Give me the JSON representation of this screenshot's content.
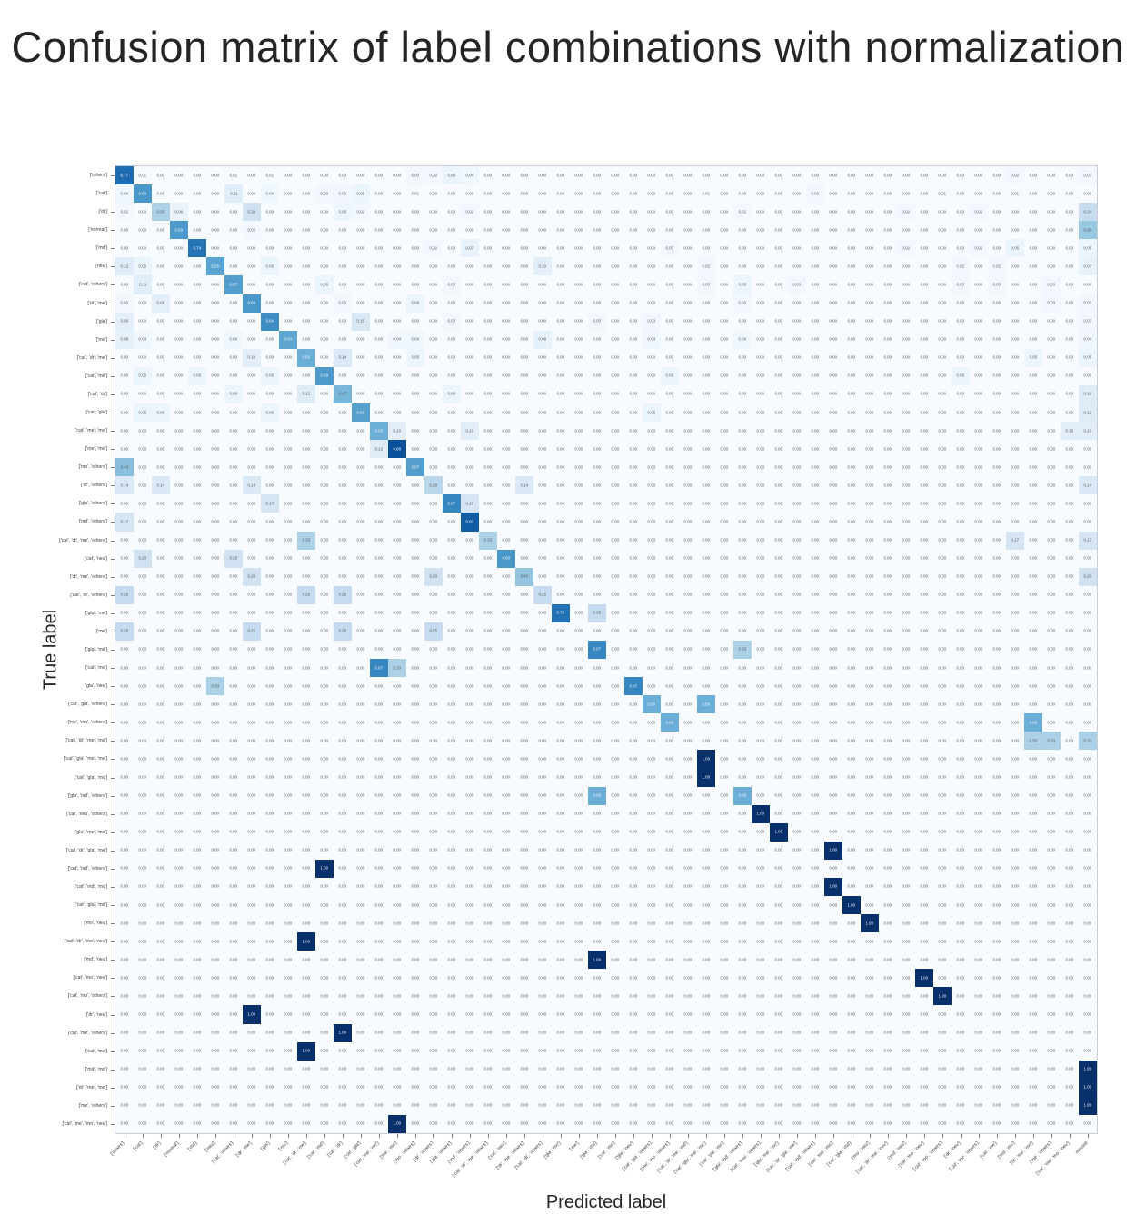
{
  "title": "Confusion matrix of label combinations with normalization",
  "chart_data": {
    "type": "heatmap",
    "colormap": "Blues",
    "title": "Confusion matrix of label combinations with normalization",
    "xlabel": "Predicted label",
    "ylabel": "True label",
    "value_range": [
      0,
      1
    ],
    "cell_format": "0.00",
    "default_value": 0,
    "grid": false,
    "row_labels": [
      "['others']",
      "['cat']",
      "['dr']",
      "['normal']",
      "['md']",
      "['neu']",
      "['cat', 'others']",
      "['dr', 'me']",
      "['gla']",
      "['mo']",
      "['cat', 'dr', 'me']",
      "['cat', 'md']",
      "['cat', 'dr']",
      "['cat', 'gla']",
      "['cat', 'me', 'mo']",
      "['me', 'mo']",
      "['mo', 'others']",
      "['dr', 'others']",
      "['gla', 'others']",
      "['md', 'others']",
      "['cat', 'dr', 'me', 'others']",
      "['cat', 'neu']",
      "['dr', 'me', 'others']",
      "['cat', 'dr', 'others']",
      "['gla', 'mo']",
      "['me']",
      "['gla', 'md']",
      "['cat', 'mo']",
      "['gla', 'neu']",
      "['cat', 'gla', 'others']",
      "['me', 'mo', 'others']",
      "['cat', 'dr', 'me', 'md']",
      "['cat', 'gla', 'me', 'mo']",
      "['cat', 'gla', 'mo']",
      "['gla', 'md', 'others']",
      "['cat', 'neu', 'others']",
      "['gla', 'me', 'mo']",
      "['cat', 'dr', 'gla', 'me']",
      "['cat', 'md', 'others']",
      "['cat', 'md', 'mo']",
      "['cat', 'gla', 'md']",
      "['mo', 'neu']",
      "['cat', 'dr', 'me', 'neu']",
      "['md', 'neu']",
      "['cat', 'mo', 'neu']",
      "['cat', 'mo', 'others']",
      "['dr', 'neu']",
      "['cat', 'me', 'others']",
      "['cat', 'me']",
      "['md', 'mo']",
      "['dr', 'me', 'mo']",
      "['me', 'others']",
      "['cat', 'me', 'mo', 'neu']"
    ],
    "extra_col_label": "missed",
    "entries": [
      [
        1,
        1,
        0.77
      ],
      [
        1,
        2,
        0.01
      ],
      [
        1,
        7,
        0.01
      ],
      [
        1,
        9,
        0.01
      ],
      [
        1,
        17,
        0.03
      ],
      [
        1,
        18,
        0.02
      ],
      [
        1,
        19,
        0.06
      ],
      [
        1,
        20,
        0.04
      ],
      [
        1,
        50,
        0.02
      ],
      [
        1,
        54,
        0.03
      ],
      [
        2,
        1,
        0.04
      ],
      [
        2,
        2,
        0.6
      ],
      [
        2,
        7,
        0.11
      ],
      [
        2,
        9,
        0.04
      ],
      [
        2,
        12,
        0.03
      ],
      [
        2,
        13,
        0.03
      ],
      [
        2,
        14,
        0.05
      ],
      [
        2,
        17,
        0.01
      ],
      [
        2,
        33,
        0.01
      ],
      [
        2,
        39,
        0.03
      ],
      [
        2,
        46,
        0.01
      ],
      [
        2,
        50,
        0.01
      ],
      [
        3,
        1,
        0.02
      ],
      [
        3,
        3,
        0.33
      ],
      [
        3,
        4,
        0.06
      ],
      [
        3,
        8,
        0.2
      ],
      [
        3,
        13,
        0.05
      ],
      [
        3,
        14,
        0.02
      ],
      [
        3,
        20,
        0.02
      ],
      [
        3,
        35,
        0.02
      ],
      [
        3,
        44,
        0.02
      ],
      [
        3,
        48,
        0.02
      ],
      [
        3,
        54,
        0.24
      ],
      [
        4,
        4,
        0.59
      ],
      [
        4,
        8,
        0.02
      ],
      [
        4,
        54,
        0.39
      ],
      [
        5,
        5,
        0.74
      ],
      [
        5,
        18,
        0.02
      ],
      [
        5,
        20,
        0.07
      ],
      [
        5,
        31,
        0.03
      ],
      [
        5,
        44,
        0.02
      ],
      [
        5,
        48,
        0.02
      ],
      [
        5,
        50,
        0.05
      ],
      [
        5,
        54,
        0.05
      ],
      [
        6,
        1,
        0.12
      ],
      [
        6,
        2,
        0.05
      ],
      [
        6,
        6,
        0.55
      ],
      [
        6,
        9,
        0.05
      ],
      [
        6,
        24,
        0.1
      ],
      [
        6,
        33,
        0.02
      ],
      [
        6,
        47,
        0.02
      ],
      [
        6,
        49,
        0.02
      ],
      [
        6,
        54,
        0.07
      ],
      [
        7,
        2,
        0.11
      ],
      [
        7,
        7,
        0.57
      ],
      [
        7,
        12,
        0.05
      ],
      [
        7,
        19,
        0.03
      ],
      [
        7,
        33,
        0.03
      ],
      [
        7,
        35,
        0.05
      ],
      [
        7,
        38,
        0.03
      ],
      [
        7,
        47,
        0.03
      ],
      [
        7,
        49,
        0.03
      ],
      [
        7,
        52,
        0.03
      ],
      [
        8,
        1,
        0.03
      ],
      [
        8,
        3,
        0.09
      ],
      [
        8,
        8,
        0.6
      ],
      [
        8,
        13,
        0.03
      ],
      [
        8,
        17,
        0.06
      ],
      [
        8,
        35,
        0.03
      ],
      [
        8,
        52,
        0.03
      ],
      [
        8,
        54,
        0.03
      ],
      [
        9,
        1,
        0.09
      ],
      [
        9,
        9,
        0.64
      ],
      [
        9,
        14,
        0.15
      ],
      [
        9,
        19,
        0.03
      ],
      [
        9,
        27,
        0.03
      ],
      [
        9,
        30,
        0.03
      ],
      [
        9,
        54,
        0.03
      ],
      [
        10,
        1,
        0.08
      ],
      [
        10,
        2,
        0.04
      ],
      [
        10,
        7,
        0.04
      ],
      [
        10,
        10,
        0.54
      ],
      [
        10,
        16,
        0.04
      ],
      [
        10,
        17,
        0.04
      ],
      [
        10,
        24,
        0.08
      ],
      [
        10,
        30,
        0.04
      ],
      [
        10,
        35,
        0.04
      ],
      [
        10,
        54,
        0.04
      ],
      [
        11,
        8,
        0.1
      ],
      [
        11,
        11,
        0.5
      ],
      [
        11,
        13,
        0.14
      ],
      [
        11,
        17,
        0.05
      ],
      [
        11,
        51,
        0.05
      ],
      [
        11,
        54,
        0.05
      ],
      [
        12,
        2,
        0.05
      ],
      [
        12,
        5,
        0.05
      ],
      [
        12,
        9,
        0.05
      ],
      [
        12,
        12,
        0.59
      ],
      [
        12,
        31,
        0.05
      ],
      [
        12,
        47,
        0.05
      ],
      [
        13,
        7,
        0.06
      ],
      [
        13,
        11,
        0.12
      ],
      [
        13,
        13,
        0.47
      ],
      [
        13,
        19,
        0.06
      ],
      [
        13,
        54,
        0.12
      ],
      [
        14,
        2,
        0.06
      ],
      [
        14,
        3,
        0.06
      ],
      [
        14,
        9,
        0.06
      ],
      [
        14,
        14,
        0.56
      ],
      [
        14,
        30,
        0.06
      ],
      [
        14,
        54,
        0.12
      ],
      [
        15,
        15,
        0.5
      ],
      [
        15,
        16,
        0.1
      ],
      [
        15,
        20,
        0.1
      ],
      [
        15,
        53,
        0.1
      ],
      [
        15,
        54,
        0.1
      ],
      [
        16,
        15,
        0.12
      ],
      [
        16,
        16,
        0.88
      ],
      [
        17,
        1,
        0.43
      ],
      [
        17,
        17,
        0.57
      ],
      [
        18,
        1,
        0.14
      ],
      [
        18,
        3,
        0.14
      ],
      [
        18,
        8,
        0.14
      ],
      [
        18,
        18,
        0.29
      ],
      [
        18,
        23,
        0.14
      ],
      [
        18,
        54,
        0.14
      ],
      [
        19,
        9,
        0.17
      ],
      [
        19,
        19,
        0.67
      ],
      [
        19,
        20,
        0.17
      ],
      [
        20,
        1,
        0.17
      ],
      [
        20,
        20,
        0.83
      ],
      [
        21,
        11,
        0.33
      ],
      [
        21,
        21,
        0.33
      ],
      [
        21,
        50,
        0.17
      ],
      [
        21,
        54,
        0.17
      ],
      [
        22,
        2,
        0.2
      ],
      [
        22,
        7,
        0.2
      ],
      [
        22,
        22,
        0.6
      ],
      [
        23,
        8,
        0.2
      ],
      [
        23,
        18,
        0.2
      ],
      [
        23,
        23,
        0.4
      ],
      [
        23,
        54,
        0.2
      ],
      [
        24,
        1,
        0.25
      ],
      [
        24,
        11,
        0.25
      ],
      [
        24,
        13,
        0.25
      ],
      [
        24,
        24,
        0.25
      ],
      [
        25,
        25,
        0.75
      ],
      [
        25,
        27,
        0.25
      ],
      [
        26,
        1,
        0.25
      ],
      [
        26,
        8,
        0.25
      ],
      [
        26,
        13,
        0.25
      ],
      [
        26,
        18,
        0.25
      ],
      [
        27,
        27,
        0.67
      ],
      [
        27,
        35,
        0.33
      ],
      [
        28,
        15,
        0.67
      ],
      [
        28,
        16,
        0.33
      ],
      [
        29,
        6,
        0.33
      ],
      [
        29,
        29,
        0.67
      ],
      [
        30,
        30,
        0.5
      ],
      [
        30,
        33,
        0.5
      ],
      [
        31,
        31,
        0.5
      ],
      [
        31,
        51,
        0.5
      ],
      [
        32,
        51,
        0.33
      ],
      [
        32,
        52,
        0.33
      ],
      [
        32,
        54,
        0.33
      ],
      [
        33,
        33,
        1.0
      ],
      [
        34,
        33,
        1.0
      ],
      [
        35,
        27,
        0.5
      ],
      [
        35,
        35,
        0.5
      ],
      [
        36,
        36,
        1.0
      ],
      [
        37,
        37,
        1.0
      ],
      [
        38,
        40,
        1.0
      ],
      [
        39,
        12,
        1.0
      ],
      [
        40,
        40,
        1.0
      ],
      [
        41,
        41,
        1.0
      ],
      [
        42,
        42,
        1.0
      ],
      [
        43,
        11,
        1.0
      ],
      [
        44,
        27,
        1.0
      ],
      [
        45,
        45,
        1.0
      ],
      [
        46,
        46,
        1.0
      ],
      [
        47,
        8,
        1.0
      ],
      [
        48,
        13,
        1.0
      ],
      [
        49,
        11,
        1.0
      ],
      [
        50,
        54,
        1.0
      ],
      [
        51,
        54,
        1.0
      ],
      [
        52,
        54,
        1.0
      ],
      [
        53,
        16,
        1.0
      ]
    ],
    "colors": {
      "low": "#f7fbff",
      "high": "#08306b",
      "text_low": "#555555",
      "text_high": "#f2f6fb"
    }
  }
}
